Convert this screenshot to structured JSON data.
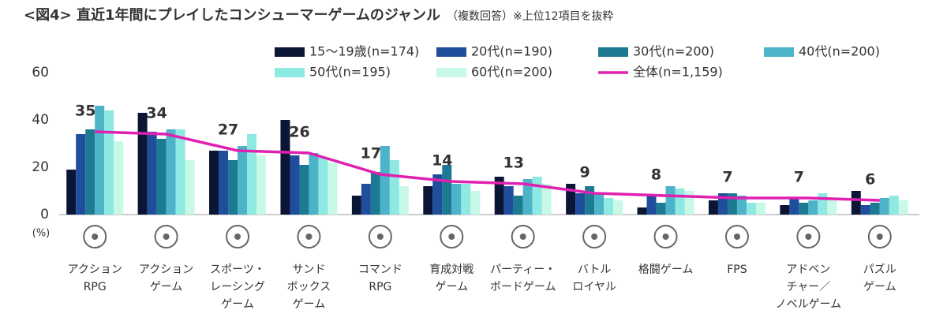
{
  "chart_data": {
    "type": "bar",
    "title": "<図4> 直近1年間にプレイしたコンシューマーゲームのジャンル",
    "subtitle": "（複数回答）※上位12項目を抜粋",
    "y_unit": "(%)",
    "categories": [
      [
        "アクション",
        "RPG"
      ],
      [
        "アクション",
        "ゲーム"
      ],
      [
        "スポーツ・",
        "レーシング",
        "ゲーム"
      ],
      [
        "サンド",
        "ボックス",
        "ゲーム"
      ],
      [
        "コマンド",
        "RPG"
      ],
      [
        "育成対戦",
        "ゲーム"
      ],
      [
        "パーティー・",
        "ボードゲーム"
      ],
      [
        "バトル",
        "ロイヤル"
      ],
      [
        "格闘ゲーム"
      ],
      [
        "FPS"
      ],
      [
        "アドベン",
        "チャー／",
        "ノベルゲーム"
      ],
      [
        "パズル",
        "ゲーム"
      ]
    ],
    "series": [
      {
        "name": "15～19歳(n=174)",
        "color": "#0b1535",
        "values": [
          19,
          43,
          27,
          40,
          8,
          12,
          16,
          13,
          3,
          6,
          4,
          10
        ]
      },
      {
        "name": "20代(n=190)",
        "color": "#1f4e9c",
        "values": [
          34,
          35,
          27,
          25,
          13,
          17,
          12,
          9,
          8,
          9,
          7,
          4
        ]
      },
      {
        "name": "30代(n=200)",
        "color": "#1d7a93",
        "values": [
          36,
          32,
          23,
          21,
          18,
          21,
          8,
          12,
          5,
          9,
          5,
          5
        ]
      },
      {
        "name": "40代(n=200)",
        "color": "#4cb3c9",
        "values": [
          46,
          36,
          29,
          26,
          29,
          13,
          15,
          9,
          12,
          8,
          6,
          7
        ]
      },
      {
        "name": "50代(n=195)",
        "color": "#8ee9e3",
        "values": [
          44,
          36,
          34,
          24,
          23,
          13,
          16,
          7,
          11,
          5,
          9,
          8
        ]
      },
      {
        "name": "60代(n=200)",
        "color": "#c8f8e6",
        "values": [
          31,
          23,
          25,
          22,
          12,
          10,
          13,
          6,
          10,
          5,
          7,
          6
        ]
      },
      {
        "name": "全体(n=1,159)",
        "color": "#e020b0",
        "type": "line",
        "values": [
          35,
          34,
          27,
          26,
          17,
          14,
          13,
          9,
          8,
          7,
          7,
          6
        ]
      }
    ],
    "ylim": [
      0,
      60
    ],
    "yticks": [
      0,
      20,
      40,
      60
    ],
    "grid": false
  }
}
